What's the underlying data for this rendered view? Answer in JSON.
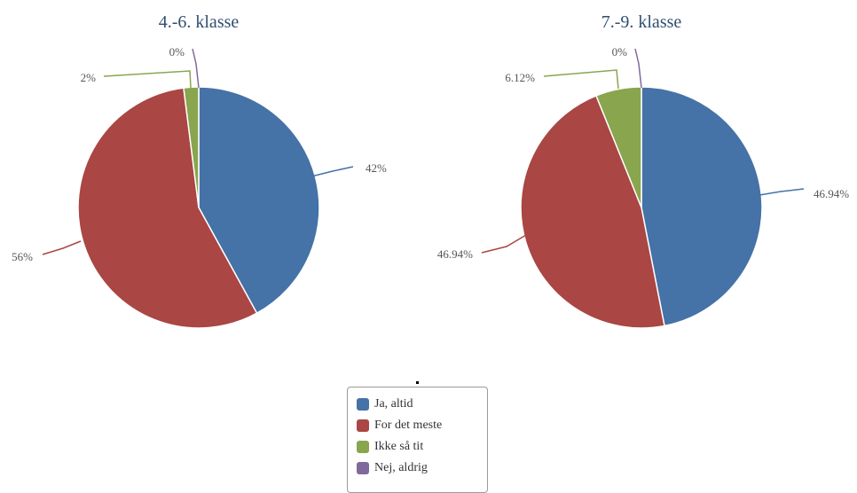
{
  "chart_data": [
    {
      "type": "pie",
      "title": "4.-6. klasse",
      "categories": [
        "Ja, altid",
        "For det meste",
        "Ikke så tit",
        "Nej, aldrig"
      ],
      "values": [
        42,
        56,
        2,
        0
      ],
      "labels": [
        "42%",
        "56%",
        "2%",
        "0%"
      ]
    },
    {
      "type": "pie",
      "title": "7.-9. klasse",
      "categories": [
        "Ja, altid",
        "For det meste",
        "Ikke så tit",
        "Nej, aldrig"
      ],
      "values": [
        46.94,
        46.94,
        6.12,
        0
      ],
      "labels": [
        "46.94%",
        "46.94%",
        "6.12%",
        "0%"
      ]
    }
  ],
  "colors": [
    "#4572a7",
    "#aa4643",
    "#89a54e",
    "#80699b"
  ],
  "legend": {
    "items": [
      {
        "label": "Ja, altid"
      },
      {
        "label": "For det meste"
      },
      {
        "label": "Ikke så tit"
      },
      {
        "label": "Nej, aldrig"
      }
    ]
  }
}
